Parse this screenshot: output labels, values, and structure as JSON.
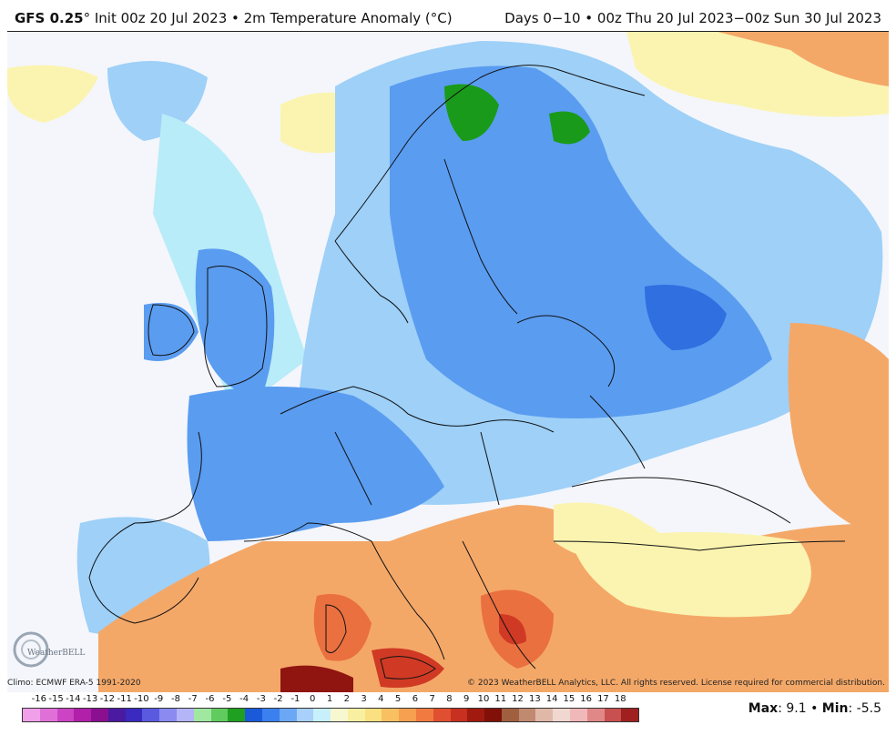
{
  "header": {
    "model": "GFS 0.25",
    "degree": "°",
    "init": "Init 00z 20 Jul 2023 • 2m Temperature Anomaly (°C)",
    "period": "Days 0−10 • 00z Thu 20 Jul 2023−00z Sun 30 Jul 2023"
  },
  "footer": {
    "climo": "Climo: ECMWF ERA-5 1991-2020",
    "copyright": "© 2023 WeatherBELL Analytics, LLC. All rights reserved. License required for commercial distribution.",
    "logo_text": "WeatherBELL",
    "max_label": "Max",
    "max_value": "9.1",
    "separator": "•",
    "min_label": "Min",
    "min_value": "-5.5"
  },
  "colorbar": {
    "labels": [
      "-16",
      "-15",
      "-14",
      "-13",
      "-12",
      "-11",
      "-10",
      "-9",
      "-8",
      "-7",
      "-6",
      "-5",
      "-4",
      "-3",
      "-2",
      "-1",
      "0",
      "1",
      "2",
      "3",
      "4",
      "5",
      "6",
      "7",
      "8",
      "9",
      "10",
      "11",
      "12",
      "13",
      "14",
      "15",
      "16",
      "17",
      "18"
    ],
    "colors": [
      "#f0a0e8",
      "#e070d8",
      "#cc44c4",
      "#b020a8",
      "#8a1090",
      "#4a1aa0",
      "#3a2ac0",
      "#5a5ae0",
      "#8a8af0",
      "#b4b4f8",
      "#a0e8a0",
      "#60cc60",
      "#20a020",
      "#1a5ad8",
      "#3a80ee",
      "#6aa8f6",
      "#a8d0fa",
      "#c8f0fa",
      "#f8f8d0",
      "#f8f0a0",
      "#fae080",
      "#f8c060",
      "#f6a050",
      "#f07a40",
      "#e05030",
      "#c83020",
      "#a01a10",
      "#801008",
      "#a06040",
      "#c08a70",
      "#e0b8a8",
      "#f0d8d0",
      "#f0b8b8",
      "#e08888",
      "#c85050",
      "#a02020"
    ]
  },
  "map": {
    "colors": {
      "ocean_neutral": "#f4f6fb",
      "cool_light": "#b8ecf8",
      "cool_mid": "#9ed0f8",
      "cool_blue": "#5a9cf0",
      "cool_deep": "#2f6fe0",
      "very_cold": "#1a9a1a",
      "warm_pale": "#fbf4b0",
      "warm_yellow": "#f8e080",
      "warm_orange": "#f4a868",
      "warm_deep": "#ea7040",
      "hot": "#d03a24",
      "very_hot": "#901410",
      "border": "#111111"
    }
  }
}
